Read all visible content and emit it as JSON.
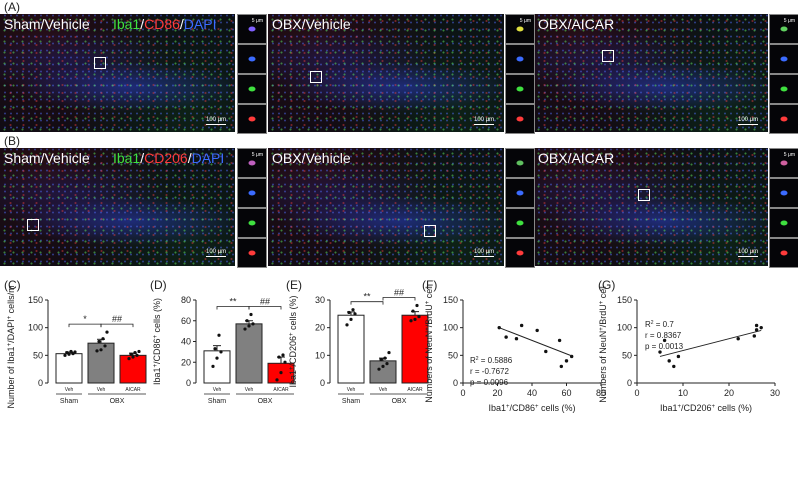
{
  "panels": {
    "A": "(A)",
    "B": "(B)",
    "C": "(C)",
    "D": "(D)",
    "E": "(E)",
    "F": "(F)",
    "G": "(G)"
  },
  "rowA": {
    "images": [
      {
        "group": "Sham/Vehicle",
        "markers": {
          "m1": "Iba1",
          "m2": "CD86",
          "m3": "DAPI",
          "sep": "/"
        },
        "scale": "100 μm"
      },
      {
        "group": "OBX/Vehicle",
        "scale": "100 μm"
      },
      {
        "group": "OBX/AICAR",
        "scale": "100 μm"
      }
    ],
    "inset_scale": "5 μm"
  },
  "rowB": {
    "images": [
      {
        "group": "Sham/Vehicle",
        "markers": {
          "m1": "Iba1",
          "m2": "CD206",
          "m3": "DAPI",
          "sep": "/"
        },
        "scale": "100 μm"
      },
      {
        "group": "OBX/Vehicle",
        "scale": "100 μm"
      },
      {
        "group": "OBX/AICAR",
        "scale": "100 μm"
      }
    ],
    "inset_scale": "5 μm"
  },
  "colors": {
    "sham": "#ffffff",
    "obx_veh": "#808080",
    "aicar": "#ff0000",
    "green": "#3fe03f",
    "red": "#ff3b3b",
    "blue": "#3b6bff"
  },
  "chart_data": [
    {
      "id": "C",
      "type": "bar",
      "ylabel": "Number of Iba1+/DAPI+ cells/mm2",
      "ylabel_parts": [
        "Number of Iba1",
        "+",
        "/DAPI",
        "+",
        " cells/mm",
        "2"
      ],
      "ylim": [
        0,
        150
      ],
      "yticks": [
        "0",
        "50",
        "100",
        "150"
      ],
      "categories": [
        "Veh",
        "Veh",
        "AICAR"
      ],
      "groups": [
        {
          "label": "Sham",
          "span": [
            0,
            0
          ]
        },
        {
          "label": "OBX",
          "span": [
            1,
            2
          ]
        }
      ],
      "values": [
        53,
        72,
        50
      ],
      "errors": [
        3,
        7,
        4
      ],
      "points": [
        [
          50,
          52,
          53,
          55,
          57,
          56
        ],
        [
          58,
          60,
          67,
          75,
          80,
          92
        ],
        [
          44,
          47,
          50,
          52,
          55,
          57
        ]
      ],
      "sig": [
        {
          "pair": [
            0,
            1
          ],
          "label": "*"
        },
        {
          "pair": [
            1,
            2
          ],
          "label": "##"
        }
      ]
    },
    {
      "id": "D",
      "type": "bar",
      "ylabel": "Iba1+/CD86+ cells (%)",
      "ylabel_parts": [
        "Iba1",
        "+",
        "/CD86",
        "+",
        " cells (%)",
        ""
      ],
      "ylim": [
        0,
        80
      ],
      "yticks": [
        "0",
        "20",
        "40",
        "60",
        "80"
      ],
      "categories": [
        "Veh",
        "Veh",
        "AICAR"
      ],
      "groups": [
        {
          "label": "Sham",
          "span": [
            0,
            0
          ]
        },
        {
          "label": "OBX",
          "span": [
            1,
            2
          ]
        }
      ],
      "values": [
        31,
        57,
        19
      ],
      "errors": [
        5,
        3,
        6
      ],
      "points": [
        [
          16,
          24,
          30,
          33,
          46
        ],
        [
          52,
          55,
          57,
          60,
          66
        ],
        [
          3,
          10,
          20,
          25,
          27
        ]
      ],
      "sig": [
        {
          "pair": [
            0,
            1
          ],
          "label": "**"
        },
        {
          "pair": [
            1,
            2
          ],
          "label": "##"
        }
      ]
    },
    {
      "id": "E",
      "type": "bar",
      "ylabel": "Iba1+/CD206+ cells (%)",
      "ylabel_parts": [
        "Iba1",
        "+",
        "/CD206",
        "+",
        " cells (%)",
        ""
      ],
      "ylim": [
        0,
        30
      ],
      "yticks": [
        "0",
        "10",
        "20",
        "30"
      ],
      "categories": [
        "Veh",
        "Veh",
        "AICAR"
      ],
      "groups": [
        {
          "label": "Sham",
          "span": [
            0,
            0
          ]
        },
        {
          "label": "OBX",
          "span": [
            1,
            2
          ]
        }
      ],
      "values": [
        24.5,
        8,
        24.5
      ],
      "errors": [
        1.2,
        1,
        1.3
      ],
      "points": [
        [
          21,
          23,
          25,
          25.5,
          26.5
        ],
        [
          5,
          6,
          7,
          8.5,
          9,
          11
        ],
        [
          22.5,
          23,
          24,
          26,
          28
        ]
      ],
      "sig": [
        {
          "pair": [
            0,
            1
          ],
          "label": "**"
        },
        {
          "pair": [
            1,
            2
          ],
          "label": "##"
        }
      ]
    },
    {
      "id": "F",
      "type": "scatter",
      "xlabel": "Iba1+/CD86+ cells (%)",
      "xlabel_parts": [
        "Iba1",
        "+",
        "/CD86",
        "+",
        " cells (%)",
        ""
      ],
      "ylabel": "Numbers of NeuN+/BrdU+ cells",
      "ylabel_parts": [
        "Numbers of NeuN",
        "+",
        "/BrdU",
        "+",
        " cells",
        ""
      ],
      "xlim": [
        0,
        80
      ],
      "ylim": [
        0,
        150
      ],
      "xticks": [
        "0",
        "20",
        "40",
        "60",
        "80"
      ],
      "yticks": [
        "0",
        "50",
        "100",
        "150"
      ],
      "points": [
        [
          21,
          100
        ],
        [
          25,
          83
        ],
        [
          31,
          80
        ],
        [
          34,
          104
        ],
        [
          43,
          95
        ],
        [
          48,
          57
        ],
        [
          56,
          77
        ],
        [
          57,
          30
        ],
        [
          60,
          40
        ],
        [
          63,
          48
        ]
      ],
      "fit": [
        [
          21,
          100
        ],
        [
          63,
          49
        ]
      ],
      "stats": {
        "r2_prefix": "R",
        "r2_sup": "2",
        "r2_value": " = 0.5886",
        "r": "r = -0.7672",
        "p": "p = 0.0096"
      }
    },
    {
      "id": "G",
      "type": "scatter",
      "xlabel": "Iba1+/CD206+ cells (%)",
      "xlabel_parts": [
        "Iba1",
        "+",
        "/CD206",
        "+",
        " cells (%)",
        ""
      ],
      "ylabel": "Numbers of NeuN+/BrdU+ cells",
      "ylabel_parts": [
        "Numbers of NeuN",
        "+",
        "/BrdU",
        "+",
        " cells",
        ""
      ],
      "xlim": [
        0,
        30
      ],
      "ylim": [
        0,
        150
      ],
      "xticks": [
        "0",
        "10",
        "20",
        "30"
      ],
      "yticks": [
        "0",
        "50",
        "100",
        "150"
      ],
      "points": [
        [
          5,
          56
        ],
        [
          6,
          77
        ],
        [
          7,
          40
        ],
        [
          8,
          30
        ],
        [
          9,
          48
        ],
        [
          22,
          80
        ],
        [
          25.5,
          85
        ],
        [
          26,
          104
        ],
        [
          26,
          96
        ],
        [
          27,
          100
        ]
      ],
      "fit": [
        [
          5,
          48
        ],
        [
          27,
          95
        ]
      ],
      "stats": {
        "r2_prefix": "R",
        "r2_sup": "2",
        "r2_value": " = 0.7",
        "r": "r = 0.8367",
        "p": "p = 0.0013"
      }
    }
  ]
}
